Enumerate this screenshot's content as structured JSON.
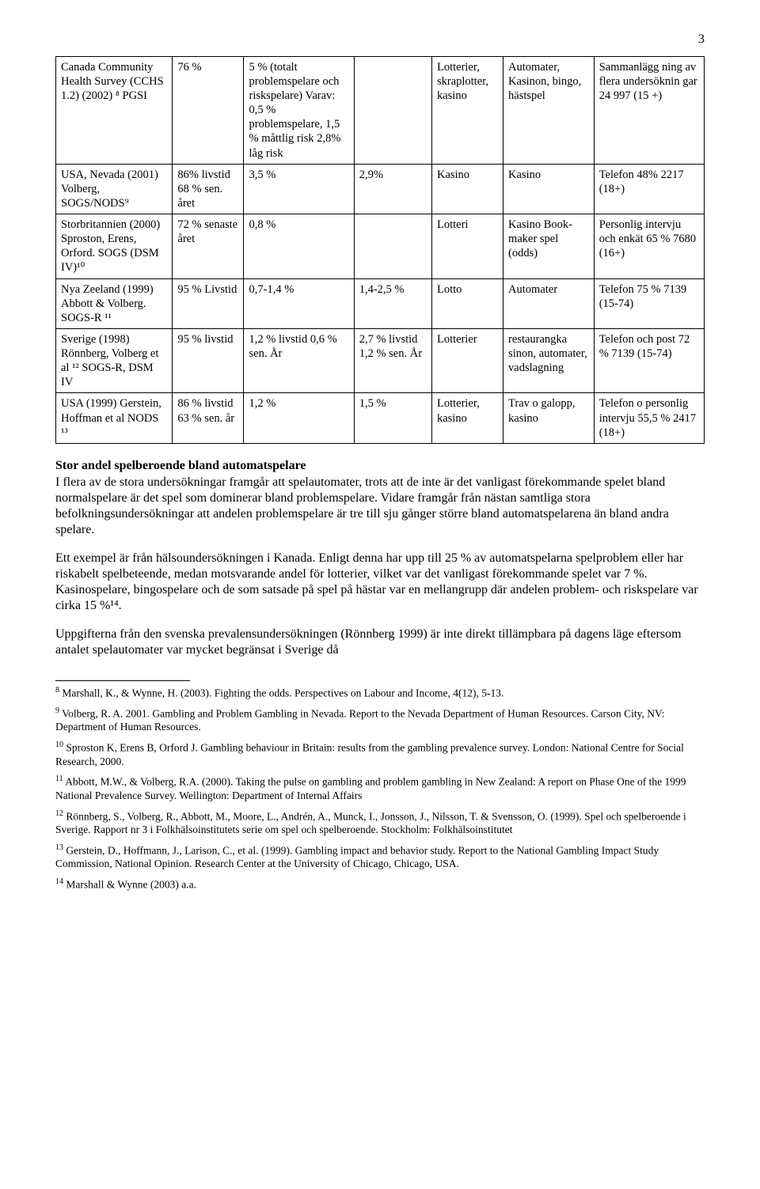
{
  "page_number": "3",
  "table": {
    "rows": [
      {
        "c0": "Canada Community Health Survey (CCHS 1.2) (2002) ⁸ PGSI",
        "c1": "76 %",
        "c2": "5 % (totalt problemspelare och riskspelare) Varav: 0,5 % problemspelare, 1,5 % måttlig risk 2,8% låg risk",
        "c3": "",
        "c4": "Lotterier, skraplotter, kasino",
        "c5": "Automater, Kasinon, bingo, hästspel",
        "c6": "Sammanlägg ning av flera undersöknin gar 24 997 (15 +)"
      },
      {
        "c0": "USA, Nevada (2001) Volberg, SOGS/NODS⁹",
        "c1": "86% livstid 68 % sen. året",
        "c2": "3,5 %",
        "c3": "2,9%",
        "c4": "Kasino",
        "c5": "Kasino",
        "c6": "Telefon 48% 2217 (18+)"
      },
      {
        "c0": "Storbritannien (2000) Sproston, Erens, Orford. SOGS (DSM IV)¹⁰",
        "c1": "72 % senaste året",
        "c2": "0,8 %",
        "c3": "",
        "c4": "Lotteri",
        "c5": "Kasino Book-maker spel (odds)",
        "c6": "Personlig intervju och enkät 65 % 7680 (16+)"
      },
      {
        "c0": "Nya Zeeland (1999) Abbott & Volberg. SOGS-R ¹¹",
        "c1": "95 % Livstid",
        "c2": "0,7-1,4 %",
        "c3": "1,4-2,5 %",
        "c4": "Lotto",
        "c5": "Automater",
        "c6": "Telefon 75 % 7139 (15-74)"
      },
      {
        "c0": "Sverige (1998) Rönnberg, Volberg et al ¹² SOGS-R, DSM IV",
        "c1": "95 % livstid",
        "c2": "1,2 % livstid 0,6 % sen. År",
        "c3": "2,7 % livstid 1,2 % sen. År",
        "c4": "Lotterier",
        "c5": "restaurangka sinon, automater, vadslagning",
        "c6": "Telefon och post 72 % 7139 (15-74)"
      },
      {
        "c0": "USA (1999) Gerstein, Hoffman et al NODS ¹³",
        "c1": "86 % livstid 63 % sen. år",
        "c2": "1,2 %",
        "c3": "1,5 %",
        "c4": "Lotterier, kasino",
        "c5": "Trav o galopp, kasino",
        "c6": "Telefon o personlig intervju 55,5 % 2417 (18+)"
      }
    ],
    "col_widths": [
      "18%",
      "11%",
      "17%",
      "12%",
      "11%",
      "14%",
      "17%"
    ]
  },
  "subheading": "Stor andel spelberoende bland automatspelare",
  "para1": "I flera av de stora undersökningar framgår att spelautomater, trots att de inte är det vanligast förekommande spelet bland normalspelare är det spel som dominerar bland problemspelare. Vidare framgår från nästan samtliga stora befolkningsundersökningar att andelen problemspelare är tre till sju gånger större bland automatspelarena än bland andra spelare.",
  "para2": "Ett exempel är från hälsoundersökningen i Kanada. Enligt denna har upp till 25 % av automatspelarna spelproblem eller har riskabelt spelbeteende, medan motsvarande andel för lotterier, vilket var det vanligast förekommande spelet var 7 %. Kasinospelare, bingospelare och de som satsade på spel på hästar var en mellangrupp där andelen problem- och riskspelare var cirka 15 %¹⁴.",
  "para3": "Uppgifterna från den svenska prevalensundersökningen (Rönnberg 1999) är inte direkt tillämpbara på dagens läge eftersom antalet spelautomater var mycket begränsat i Sverige då",
  "footnotes": [
    {
      "mark": "8",
      "text": "Marshall, K., & Wynne, H. (2003). Fighting the odds. Perspectives on Labour and Income, 4(12), 5-13."
    },
    {
      "mark": "9",
      "text": "Volberg, R. A. 2001. Gambling and Problem Gambling in Nevada. Report to the Nevada Department of Human Resources. Carson City, NV: Department of Human Resources."
    },
    {
      "mark": "10",
      "text": "Sproston K, Erens B, Orford J. Gambling behaviour in Britain: results from the gambling prevalence survey. London: National Centre for Social Research, 2000."
    },
    {
      "mark": "11",
      "text": "Abbott, M.W., & Volberg, R.A. (2000). Taking the pulse on gambling and problem gambling in New Zealand: A report on Phase One of the 1999 National Prevalence Survey. Wellington: Department of Internal Affairs"
    },
    {
      "mark": "12",
      "text": "Rönnberg, S., Volberg, R., Abbott, M., Moore, L., Andrén, A., Munck, I., Jonsson, J., Nilsson, T. & Svensson, O. (1999). Spel och spelberoende i Sverige. Rapport nr 3 i Folkhälsoinstitutets serie om spel och spelberoende. Stockholm: Folkhälsoinstitutet"
    },
    {
      "mark": "13",
      "text": "Gerstein, D., Hoffmann, J., Larison, C., et al. (1999). Gambling impact and behavior study. Report to the National Gambling Impact Study Commission, National Opinion. Research Center at the University of Chicago, Chicago, USA."
    },
    {
      "mark": "14",
      "text": "Marshall & Wynne (2003) a.a."
    }
  ]
}
